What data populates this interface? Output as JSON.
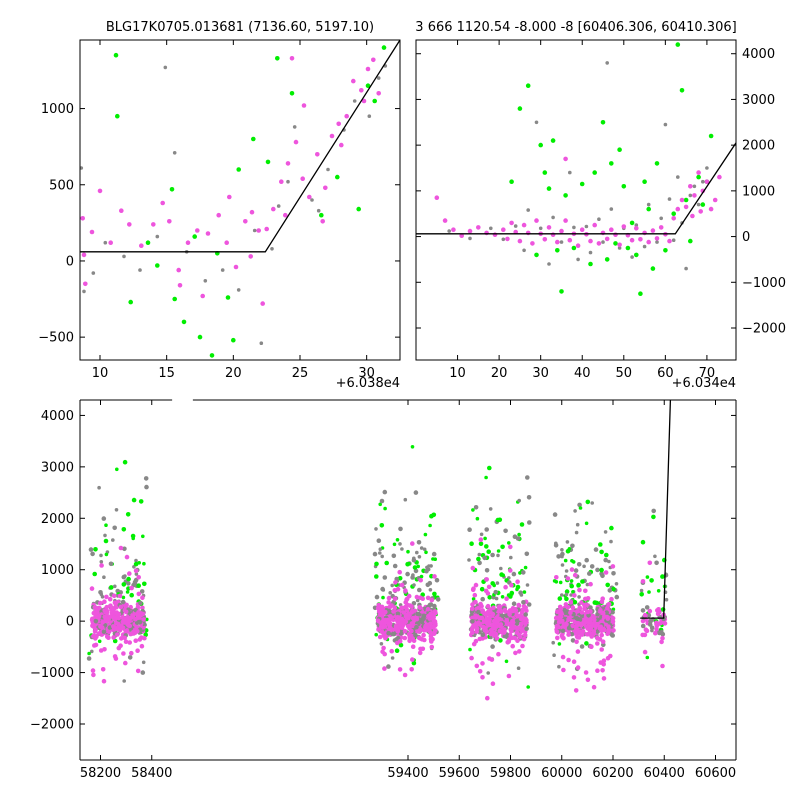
{
  "colors": {
    "gray": "#888888",
    "green": "#00ee00",
    "magenta": "#ee55dd",
    "model": "#000000"
  },
  "chart_data": [
    {
      "id": "top-left",
      "type": "scatter",
      "title": "BLG17K0705.013681 (7136.60, 5197.10)",
      "xlabel": "",
      "ylabel": "",
      "offset_label": "+6.038e4",
      "xlim": [
        8.5,
        32.5
      ],
      "ylim": [
        -650,
        1450
      ],
      "xticks": [
        10,
        15,
        20,
        25,
        30
      ],
      "yticks": [
        -500,
        0,
        500,
        1000
      ],
      "ytick_side": "left",
      "model_line": [
        [
          8.5,
          60
        ],
        [
          22.4,
          60
        ],
        [
          32.5,
          1450
        ]
      ],
      "points": {
        "gray": [
          [
            8.6,
            610
          ],
          [
            8.8,
            -200
          ],
          [
            9.5,
            -80
          ],
          [
            10.4,
            120
          ],
          [
            11.8,
            30
          ],
          [
            13.0,
            -60
          ],
          [
            14.3,
            160
          ],
          [
            15.6,
            710
          ],
          [
            16.5,
            60
          ],
          [
            17.9,
            -130
          ],
          [
            19.2,
            -60
          ],
          [
            20.4,
            -190
          ],
          [
            21.6,
            200
          ],
          [
            22.9,
            80
          ],
          [
            24.1,
            520
          ],
          [
            24.6,
            880
          ],
          [
            25.9,
            400
          ],
          [
            27.1,
            600
          ],
          [
            28.3,
            860
          ],
          [
            29.1,
            1050
          ],
          [
            30.2,
            950
          ],
          [
            30.9,
            1200
          ],
          [
            31.4,
            1280
          ],
          [
            26.4,
            330
          ],
          [
            23.4,
            360
          ],
          [
            22.1,
            -540
          ],
          [
            14.9,
            1270
          ]
        ],
        "green": [
          [
            11.2,
            1350
          ],
          [
            11.3,
            950
          ],
          [
            12.3,
            -270
          ],
          [
            14.3,
            -30
          ],
          [
            15.4,
            470
          ],
          [
            15.6,
            -250
          ],
          [
            16.3,
            -400
          ],
          [
            17.5,
            -500
          ],
          [
            18.4,
            -620
          ],
          [
            18.8,
            50
          ],
          [
            19.6,
            -240
          ],
          [
            20.4,
            600
          ],
          [
            21.5,
            800
          ],
          [
            22.6,
            650
          ],
          [
            23.3,
            1330
          ],
          [
            24.4,
            1100
          ],
          [
            26.6,
            300
          ],
          [
            27.8,
            550
          ],
          [
            29.4,
            340
          ],
          [
            30.1,
            1150
          ],
          [
            30.6,
            1050
          ],
          [
            31.3,
            1400
          ],
          [
            17.1,
            160
          ],
          [
            20.0,
            -520
          ],
          [
            13.6,
            120
          ]
        ],
        "magenta": [
          [
            8.7,
            280
          ],
          [
            8.8,
            40
          ],
          [
            8.9,
            -150
          ],
          [
            9.4,
            190
          ],
          [
            10.0,
            460
          ],
          [
            10.8,
            120
          ],
          [
            11.6,
            330
          ],
          [
            12.2,
            240
          ],
          [
            13.1,
            100
          ],
          [
            14.0,
            240
          ],
          [
            14.7,
            380
          ],
          [
            15.2,
            260
          ],
          [
            15.9,
            -60
          ],
          [
            16.6,
            120
          ],
          [
            17.3,
            200
          ],
          [
            18.1,
            180
          ],
          [
            18.9,
            300
          ],
          [
            19.5,
            120
          ],
          [
            20.2,
            -40
          ],
          [
            20.9,
            260
          ],
          [
            21.4,
            320
          ],
          [
            21.9,
            200
          ],
          [
            22.5,
            210
          ],
          [
            23.0,
            340
          ],
          [
            23.6,
            520
          ],
          [
            24.1,
            640
          ],
          [
            24.7,
            780
          ],
          [
            25.2,
            540
          ],
          [
            25.7,
            420
          ],
          [
            26.3,
            700
          ],
          [
            26.9,
            480
          ],
          [
            27.4,
            820
          ],
          [
            27.9,
            900
          ],
          [
            28.5,
            950
          ],
          [
            29.0,
            1180
          ],
          [
            29.6,
            1120
          ],
          [
            30.1,
            1260
          ],
          [
            30.5,
            1320
          ],
          [
            30.9,
            1100
          ],
          [
            24.4,
            1330
          ],
          [
            25.3,
            1020
          ],
          [
            23.9,
            300
          ],
          [
            22.2,
            -280
          ],
          [
            21.3,
            30
          ],
          [
            19.7,
            420
          ],
          [
            17.7,
            -230
          ],
          [
            16.0,
            -160
          ],
          [
            26.7,
            260
          ],
          [
            28.1,
            760
          ],
          [
            29.8,
            1050
          ]
        ]
      }
    },
    {
      "id": "top-right",
      "type": "scatter",
      "title": "3 666 1120.54 -8.000 -8 [60406.306, 60410.306]",
      "xlabel": "",
      "ylabel": "",
      "offset_label": "+6.034e4",
      "xlim": [
        0,
        77
      ],
      "ylim": [
        -2700,
        4300
      ],
      "xticks": [
        10,
        20,
        30,
        40,
        50,
        60,
        70
      ],
      "yticks": [
        -2000,
        -1000,
        0,
        1000,
        2000,
        3000,
        4000
      ],
      "ytick_side": "right",
      "model_line": [
        [
          0,
          60
        ],
        [
          62.4,
          60
        ],
        [
          77,
          2050
        ]
      ],
      "points": {
        "gray": [
          [
            8,
            120
          ],
          [
            13,
            -40
          ],
          [
            18,
            180
          ],
          [
            21,
            -60
          ],
          [
            24,
            230
          ],
          [
            26,
            -300
          ],
          [
            27,
            580
          ],
          [
            29,
            2500
          ],
          [
            30,
            180
          ],
          [
            32,
            -600
          ],
          [
            33,
            420
          ],
          [
            35,
            -120
          ],
          [
            37,
            1400
          ],
          [
            38,
            200
          ],
          [
            39,
            -500
          ],
          [
            41,
            220
          ],
          [
            42,
            -350
          ],
          [
            44,
            380
          ],
          [
            45,
            -120
          ],
          [
            46,
            3800
          ],
          [
            47,
            600
          ],
          [
            49,
            -250
          ],
          [
            50,
            180
          ],
          [
            52,
            -450
          ],
          [
            53,
            250
          ],
          [
            55,
            -220
          ],
          [
            56,
            700
          ],
          [
            58,
            -120
          ],
          [
            59,
            400
          ],
          [
            60,
            2450
          ],
          [
            61,
            820
          ],
          [
            62,
            -80
          ],
          [
            63,
            1300
          ],
          [
            64,
            300
          ],
          [
            65,
            -700
          ],
          [
            66,
            900
          ],
          [
            67,
            1100
          ],
          [
            68,
            700
          ],
          [
            69,
            1200
          ],
          [
            70,
            1500
          ]
        ],
        "green": [
          [
            23,
            1200
          ],
          [
            25,
            2800
          ],
          [
            27,
            3300
          ],
          [
            29,
            -400
          ],
          [
            30,
            2000
          ],
          [
            31,
            1400
          ],
          [
            32,
            1050
          ],
          [
            33,
            2100
          ],
          [
            34,
            -300
          ],
          [
            35,
            -1200
          ],
          [
            36,
            900
          ],
          [
            38,
            -250
          ],
          [
            40,
            1150
          ],
          [
            42,
            -600
          ],
          [
            43,
            1400
          ],
          [
            45,
            2500
          ],
          [
            46,
            -500
          ],
          [
            47,
            1600
          ],
          [
            48,
            -150
          ],
          [
            49,
            1900
          ],
          [
            50,
            1100
          ],
          [
            51,
            -250
          ],
          [
            52,
            300
          ],
          [
            53,
            -400
          ],
          [
            54,
            -1250
          ],
          [
            55,
            1200
          ],
          [
            56,
            600
          ],
          [
            57,
            -700
          ],
          [
            58,
            1600
          ],
          [
            60,
            -300
          ],
          [
            62,
            500
          ],
          [
            63,
            4200
          ],
          [
            64,
            3200
          ],
          [
            65,
            800
          ],
          [
            66,
            -100
          ],
          [
            68,
            1300
          ],
          [
            69,
            700
          ],
          [
            70,
            1200
          ],
          [
            71,
            2200
          ]
        ],
        "magenta": [
          [
            5,
            850
          ],
          [
            7,
            350
          ],
          [
            9,
            150
          ],
          [
            11,
            20
          ],
          [
            13,
            120
          ],
          [
            15,
            200
          ],
          [
            17,
            80
          ],
          [
            19,
            40
          ],
          [
            21,
            150
          ],
          [
            22,
            -50
          ],
          [
            23,
            300
          ],
          [
            24,
            100
          ],
          [
            25,
            -100
          ],
          [
            26,
            250
          ],
          [
            27,
            80
          ],
          [
            28,
            -150
          ],
          [
            29,
            350
          ],
          [
            30,
            60
          ],
          [
            31,
            -60
          ],
          [
            32,
            200
          ],
          [
            33,
            40
          ],
          [
            34,
            -120
          ],
          [
            35,
            120
          ],
          [
            36,
            350
          ],
          [
            37,
            -80
          ],
          [
            38,
            60
          ],
          [
            39,
            -200
          ],
          [
            40,
            150
          ],
          [
            41,
            50
          ],
          [
            42,
            -100
          ],
          [
            43,
            250
          ],
          [
            44,
            -150
          ],
          [
            45,
            80
          ],
          [
            46,
            -50
          ],
          [
            47,
            150
          ],
          [
            48,
            40
          ],
          [
            49,
            -180
          ],
          [
            50,
            220
          ],
          [
            51,
            30
          ],
          [
            52,
            -80
          ],
          [
            53,
            180
          ],
          [
            54,
            -60
          ],
          [
            55,
            80
          ],
          [
            56,
            -120
          ],
          [
            57,
            130
          ],
          [
            58,
            -40
          ],
          [
            59,
            200
          ],
          [
            60,
            50
          ],
          [
            61,
            -100
          ],
          [
            62,
            400
          ],
          [
            63,
            600
          ],
          [
            64,
            800
          ],
          [
            65,
            650
          ],
          [
            66,
            1100
          ],
          [
            67,
            900
          ],
          [
            68,
            1400
          ],
          [
            69,
            1000
          ],
          [
            70,
            1200
          ],
          [
            71,
            600
          ],
          [
            72,
            800
          ],
          [
            73,
            1300
          ],
          [
            68.5,
            550
          ],
          [
            66.5,
            450
          ],
          [
            36,
            1700
          ]
        ]
      }
    },
    {
      "id": "bottom",
      "type": "scatter",
      "title": "",
      "xlabel": "",
      "ylabel": "",
      "offset_label": "",
      "xlim": [
        58120,
        60680
      ],
      "ylim": [
        -2700,
        4300
      ],
      "xticks": [
        58200,
        58400,
        59400,
        59600,
        59800,
        60000,
        60200,
        60400,
        60600
      ],
      "yticks": [
        -2000,
        -1000,
        0,
        1000,
        2000,
        3000,
        4000
      ],
      "ytick_side": "left",
      "axis_gap": [
        58480,
        58560
      ],
      "model_line": [
        [
          60306,
          60
        ],
        [
          60398,
          60
        ],
        [
          60424,
          4300
        ]
      ],
      "seasons": [
        {
          "center": 58270,
          "halfwidth": 115,
          "n_core": 380,
          "n_scatter": 110
        },
        {
          "center": 59395,
          "halfwidth": 125,
          "n_core": 420,
          "n_scatter": 150
        },
        {
          "center": 59755,
          "halfwidth": 120,
          "n_core": 360,
          "n_scatter": 120
        },
        {
          "center": 60090,
          "halfwidth": 125,
          "n_core": 380,
          "n_scatter": 130
        },
        {
          "center": 60360,
          "halfwidth": 50,
          "n_core": 40,
          "n_scatter": 30
        }
      ]
    }
  ]
}
